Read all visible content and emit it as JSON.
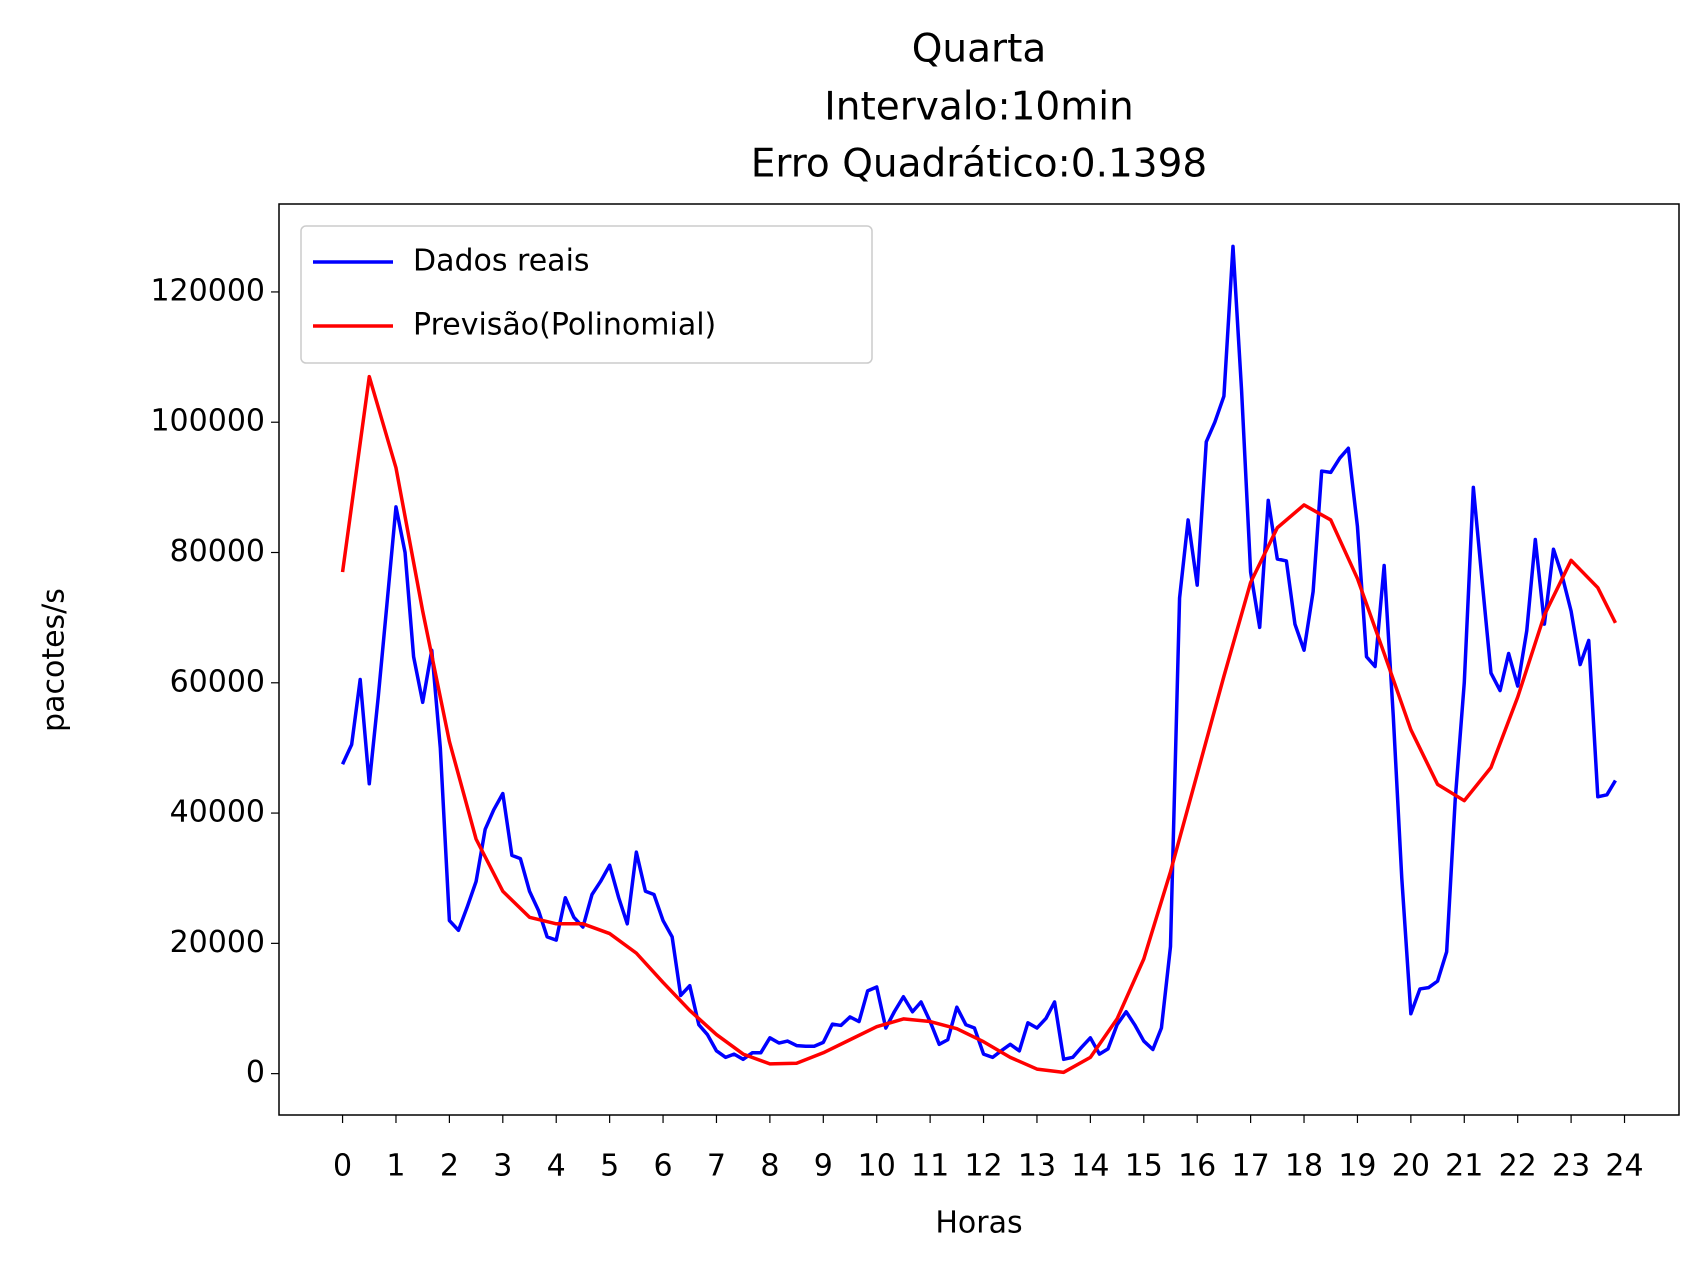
{
  "chart_data": {
    "type": "line",
    "title": [
      "Quarta",
      "Intervalo:10min",
      "Erro Quadrático:0.1398"
    ],
    "x_label": "Horas",
    "y_label": "pacotes/s",
    "xlim": [
      -1.19,
      25.02
    ],
    "ylim": [
      -6350,
      133500
    ],
    "xticks": [
      0,
      1,
      2,
      3,
      4,
      5,
      6,
      7,
      8,
      9,
      10,
      11,
      12,
      13,
      14,
      15,
      16,
      17,
      18,
      19,
      20,
      21,
      22,
      23,
      24
    ],
    "yticks": [
      0,
      20000,
      40000,
      60000,
      80000,
      100000,
      120000
    ],
    "legend": "upper left",
    "series": [
      {
        "name": "Dados reais",
        "color": "#0000ff",
        "x": [
          0,
          0.17,
          0.33,
          0.5,
          0.67,
          0.83,
          1,
          1.17,
          1.33,
          1.5,
          1.67,
          1.83,
          2,
          2.17,
          2.33,
          2.5,
          2.67,
          2.83,
          3,
          3.17,
          3.33,
          3.5,
          3.67,
          3.83,
          4,
          4.17,
          4.33,
          4.5,
          4.67,
          4.83,
          5,
          5.17,
          5.33,
          5.5,
          5.67,
          5.83,
          6,
          6.17,
          6.33,
          6.5,
          6.67,
          6.83,
          7,
          7.17,
          7.33,
          7.5,
          7.67,
          7.83,
          8,
          8.17,
          8.33,
          8.5,
          8.67,
          8.83,
          9,
          9.17,
          9.33,
          9.5,
          9.67,
          9.83,
          10,
          10.17,
          10.33,
          10.5,
          10.67,
          10.83,
          11,
          11.17,
          11.33,
          11.5,
          11.67,
          11.83,
          12,
          12.17,
          12.33,
          12.5,
          12.67,
          12.83,
          13,
          13.17,
          13.33,
          13.5,
          13.67,
          13.83,
          14,
          14.17,
          14.33,
          14.5,
          14.67,
          14.83,
          15,
          15.17,
          15.33,
          15.5,
          15.67,
          15.83,
          16,
          16.17,
          16.33,
          16.5,
          16.67,
          16.83,
          17,
          17.17,
          17.33,
          17.5,
          17.67,
          17.83,
          18,
          18.17,
          18.33,
          18.5,
          18.67,
          18.83,
          19,
          19.17,
          19.33,
          19.5,
          19.67,
          19.83,
          20,
          20.17,
          20.33,
          20.5,
          20.67,
          20.83,
          21,
          21.17,
          21.33,
          21.5,
          21.67,
          21.83,
          22,
          22.17,
          22.33,
          22.5,
          22.67,
          22.83,
          23,
          23.17,
          23.33,
          23.5,
          23.67,
          23.83
        ],
        "values": [
          47500,
          50500,
          60500,
          44500,
          58000,
          72000,
          87000,
          80000,
          64000,
          57000,
          65000,
          50000,
          23500,
          22000,
          25500,
          29500,
          37500,
          40500,
          43000,
          33500,
          33000,
          28000,
          25000,
          21000,
          20500,
          27000,
          24000,
          22500,
          27500,
          29500,
          32000,
          27000,
          23000,
          34000,
          28000,
          27500,
          23500,
          21000,
          12000,
          13500,
          7500,
          6000,
          3500,
          2500,
          3000,
          2200,
          3200,
          3200,
          5500,
          4700,
          5000,
          4300,
          4200,
          4200,
          4800,
          7600,
          7400,
          8700,
          8000,
          12700,
          13300,
          7000,
          9500,
          11800,
          9500,
          11000,
          8000,
          4500,
          5200,
          10200,
          7500,
          7000,
          3000,
          2500,
          3500,
          4500,
          3500,
          7800,
          7000,
          8500,
          11000,
          2200,
          2500,
          4000,
          5500,
          3000,
          3800,
          7500,
          9500,
          7500,
          5000,
          3700,
          7000,
          19500,
          73000,
          85000,
          75000,
          97000,
          100000,
          104000,
          127000,
          105000,
          77000,
          68500,
          88000,
          79000,
          78700,
          69000,
          65000,
          74000,
          92500,
          92300,
          94500,
          96000,
          84000,
          64000,
          62500,
          78000,
          55000,
          30000,
          9200,
          13000,
          13200,
          14200,
          18700,
          42000,
          60000,
          90000,
          76000,
          61500,
          58800,
          64500,
          59500,
          68000,
          82000,
          69000,
          80500,
          76500,
          71000,
          62800,
          66500,
          42500,
          42800,
          45000
        ]
      },
      {
        "name": "Previsão(Polinomial)",
        "color": "#ff0000",
        "x": [
          0,
          0.5,
          1,
          1.5,
          2,
          2.5,
          3,
          3.5,
          4,
          4.5,
          5,
          5.5,
          6,
          6.5,
          7,
          7.5,
          8,
          8.5,
          9,
          9.5,
          10,
          10.5,
          11,
          11.5,
          12,
          12.5,
          13,
          13.5,
          14,
          14.5,
          15,
          15.5,
          16,
          16.5,
          17,
          17.5,
          18,
          18.5,
          19,
          19.5,
          20,
          20.5,
          21,
          21.5,
          22,
          22.5,
          23,
          23.5,
          23.83
        ],
        "values": [
          77000,
          107000,
          93000,
          71000,
          51000,
          36000,
          28000,
          24000,
          23000,
          23000,
          21500,
          18500,
          14000,
          9700,
          6000,
          3000,
          1500,
          1600,
          3200,
          5200,
          7200,
          8400,
          8000,
          6900,
          4900,
          2500,
          700,
          200,
          2500,
          8400,
          17600,
          31000,
          46000,
          61000,
          75400,
          83800,
          87300,
          85000,
          76000,
          64500,
          52800,
          44400,
          41900,
          47000,
          57800,
          70400,
          78800,
          74600,
          69200
        ]
      }
    ]
  }
}
